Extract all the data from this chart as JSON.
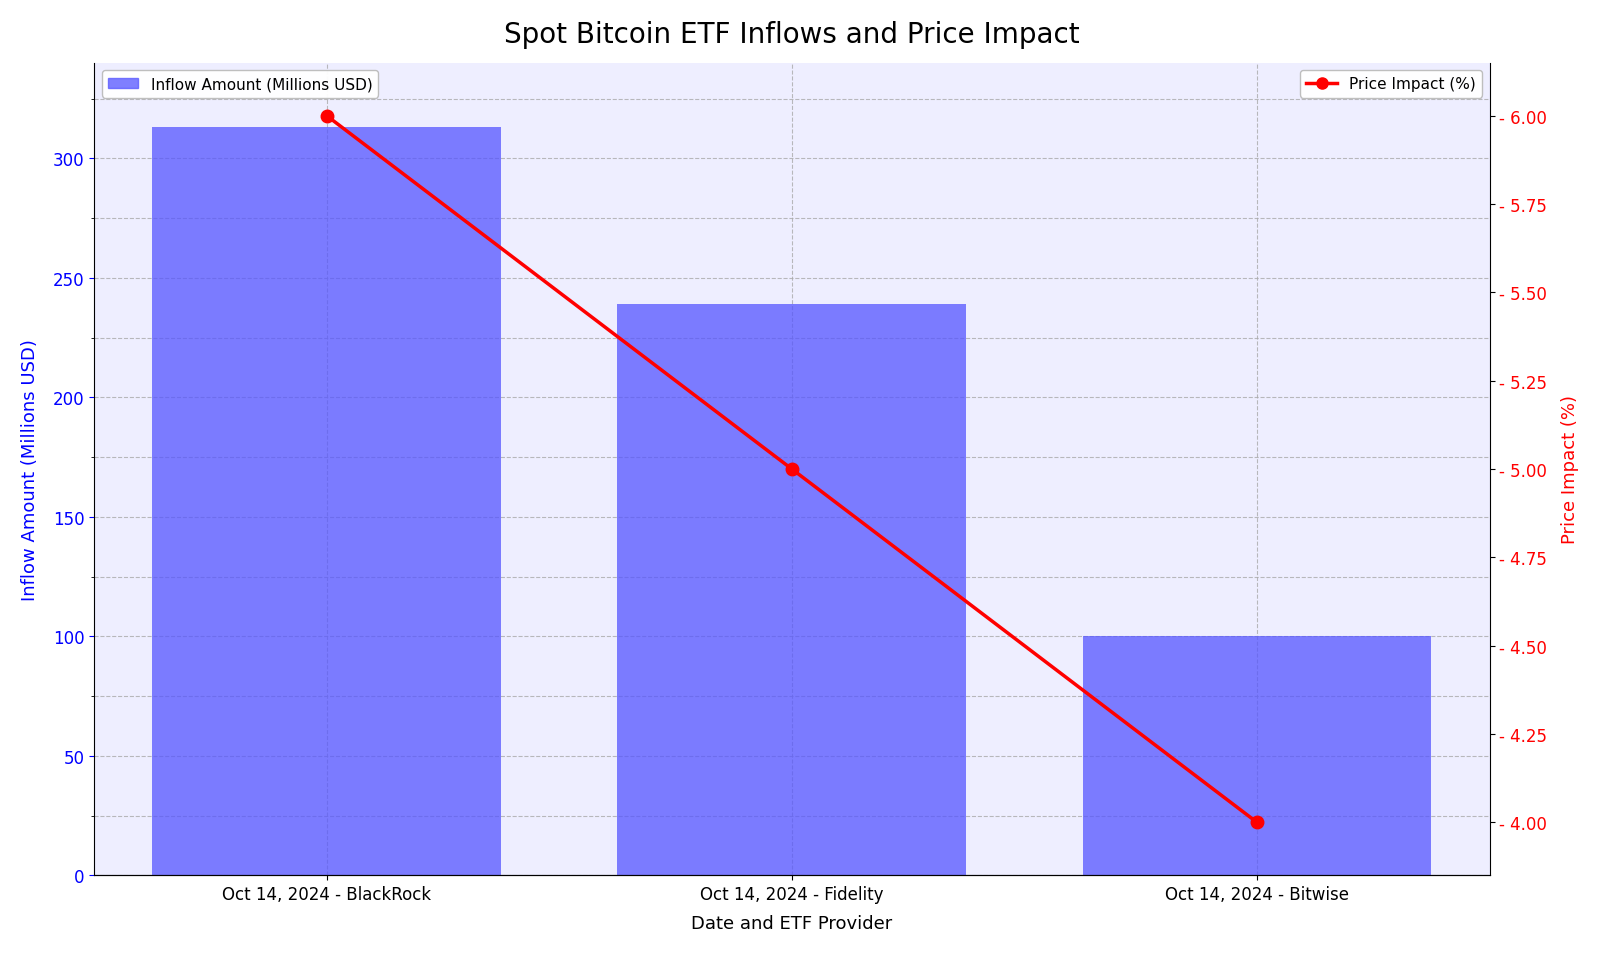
{
  "title": "Spot Bitcoin ETF Inflows and Price Impact",
  "categories": [
    "Oct 14, 2024 - BlackRock",
    "Oct 14, 2024 - Fidelity",
    "Oct 14, 2024 - Bitwise"
  ],
  "inflow_values": [
    313,
    239,
    100
  ],
  "price_impact_values": [
    6.0,
    5.0,
    4.0
  ],
  "bar_color": "#5555ff",
  "bar_alpha": 0.75,
  "line_color": "red",
  "xlabel": "Date and ETF Provider",
  "ylabel_left": "Inflow Amount (Millions USD)",
  "ylabel_right": "Price Impact (%)",
  "ylabel_left_color": "blue",
  "ylabel_right_color": "red",
  "ylim_left": [
    0,
    340
  ],
  "ylim_right": [
    3.85,
    6.15
  ],
  "yticks_right": [
    4.0,
    4.25,
    4.5,
    4.75,
    5.0,
    5.25,
    5.5,
    5.75,
    6.0
  ],
  "yticks_left": [
    0,
    50,
    100,
    150,
    200,
    250,
    300
  ],
  "legend_inflow_label": "Inflow Amount (Millions USD)",
  "legend_price_label": "Price Impact (%)",
  "title_fontsize": 20,
  "axis_label_fontsize": 13,
  "tick_fontsize": 12,
  "background_color": "white",
  "plot_bg_color": "#eeeeff",
  "grid_color": "#aaaaaa",
  "grid_linestyle": "--",
  "grid_alpha": 0.8,
  "bar_width": 0.75,
  "xlim_left": -0.5,
  "xlim_right": 2.5
}
